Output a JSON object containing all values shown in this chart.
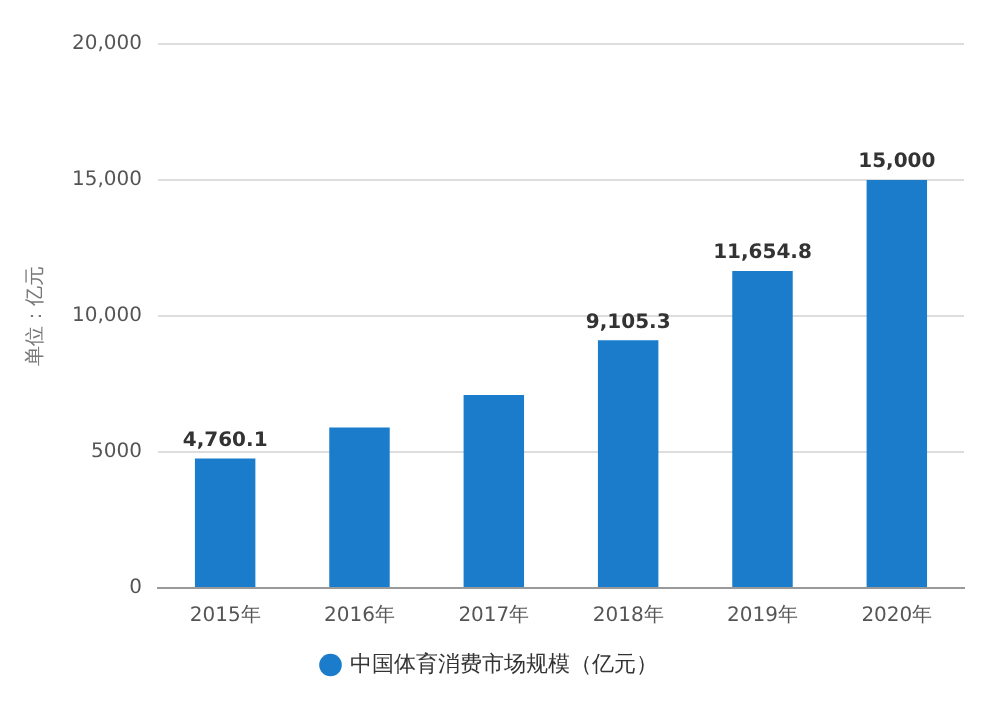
{
  "chart_data": {
    "type": "bar",
    "ylabel": "单位：亿元",
    "categories": [
      "2015年",
      "2016年",
      "2017年",
      "2018年",
      "2019年",
      "2020年"
    ],
    "series": [
      {
        "name": "中国体育消费市场规模（亿元）",
        "color": "#1a7ccb",
        "values": [
          4760.1,
          5900,
          7100,
          9105.3,
          11654.8,
          15000
        ],
        "value_labels": [
          "4,760.1",
          null,
          null,
          "9,105.3",
          "11,654.8",
          "15,000"
        ]
      }
    ],
    "ylim": [
      0,
      20000
    ],
    "yticks": [
      0,
      {
        "value": 5000,
        "label": "5000"
      },
      {
        "value": 10000,
        "label": "10,000"
      },
      {
        "value": 15000,
        "label": "15,000"
      },
      {
        "value": 20000,
        "label": "20,000"
      }
    ],
    "grid": "y",
    "legend": "bottom"
  }
}
